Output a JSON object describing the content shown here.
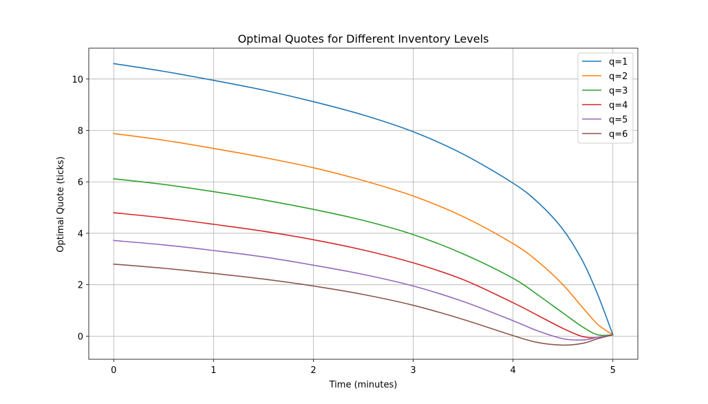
{
  "chart_data": {
    "type": "line",
    "title": "Optimal Quotes for Different Inventory Levels",
    "xlabel": "Time (minutes)",
    "ylabel": "Optimal Quote (ticks)",
    "xlim": [
      -0.25,
      5.25
    ],
    "ylim": [
      -0.9,
      11.2
    ],
    "xticks": [
      0,
      1,
      2,
      3,
      4,
      5
    ],
    "yticks": [
      0,
      2,
      4,
      6,
      8,
      10
    ],
    "grid": true,
    "legend_position": "top-right",
    "series": [
      {
        "name": "q=1",
        "color": "#1f77b4",
        "x": [
          0,
          0.5,
          1,
          1.5,
          2,
          2.5,
          3,
          3.5,
          4,
          4.25,
          4.5,
          4.7,
          4.85,
          5
        ],
        "y": [
          10.6,
          10.3,
          9.95,
          9.57,
          9.12,
          8.6,
          7.95,
          7.08,
          5.95,
          5.2,
          4.15,
          2.9,
          1.6,
          0.05
        ]
      },
      {
        "name": "q=2",
        "color": "#ff7f0e",
        "x": [
          0,
          0.5,
          1,
          1.5,
          2,
          2.5,
          3,
          3.5,
          4,
          4.25,
          4.5,
          4.7,
          4.85,
          5
        ],
        "y": [
          7.88,
          7.62,
          7.3,
          6.95,
          6.55,
          6.05,
          5.45,
          4.65,
          3.6,
          2.9,
          2.0,
          1.1,
          0.45,
          0.05
        ]
      },
      {
        "name": "q=3",
        "color": "#2ca02c",
        "x": [
          0,
          0.5,
          1,
          1.5,
          2,
          2.5,
          3,
          3.5,
          4,
          4.25,
          4.5,
          4.7,
          4.85,
          5
        ],
        "y": [
          6.12,
          5.9,
          5.62,
          5.3,
          4.93,
          4.5,
          3.95,
          3.2,
          2.25,
          1.6,
          0.9,
          0.35,
          0.05,
          0.05
        ]
      },
      {
        "name": "q=4",
        "color": "#d62728",
        "x": [
          0,
          0.5,
          1,
          1.5,
          2,
          2.5,
          3,
          3.5,
          4,
          4.25,
          4.5,
          4.7,
          4.85,
          5
        ],
        "y": [
          4.8,
          4.6,
          4.35,
          4.08,
          3.75,
          3.35,
          2.85,
          2.2,
          1.3,
          0.8,
          0.3,
          -0.02,
          -0.05,
          0.05
        ]
      },
      {
        "name": "q=5",
        "color": "#9467bd",
        "x": [
          0,
          0.5,
          1,
          1.5,
          2,
          2.5,
          3,
          3.5,
          4,
          4.25,
          4.5,
          4.7,
          4.85,
          5
        ],
        "y": [
          3.72,
          3.55,
          3.33,
          3.08,
          2.76,
          2.4,
          1.95,
          1.35,
          0.6,
          0.2,
          -0.1,
          -0.15,
          -0.05,
          0.05
        ]
      },
      {
        "name": "q=6",
        "color": "#8c564b",
        "x": [
          0,
          0.5,
          1,
          1.5,
          2,
          2.5,
          3,
          3.5,
          4,
          4.25,
          4.5,
          4.7,
          4.85,
          5
        ],
        "y": [
          2.8,
          2.64,
          2.44,
          2.22,
          1.95,
          1.62,
          1.2,
          0.65,
          0.02,
          -0.25,
          -0.35,
          -0.28,
          -0.1,
          0.05
        ]
      }
    ]
  }
}
